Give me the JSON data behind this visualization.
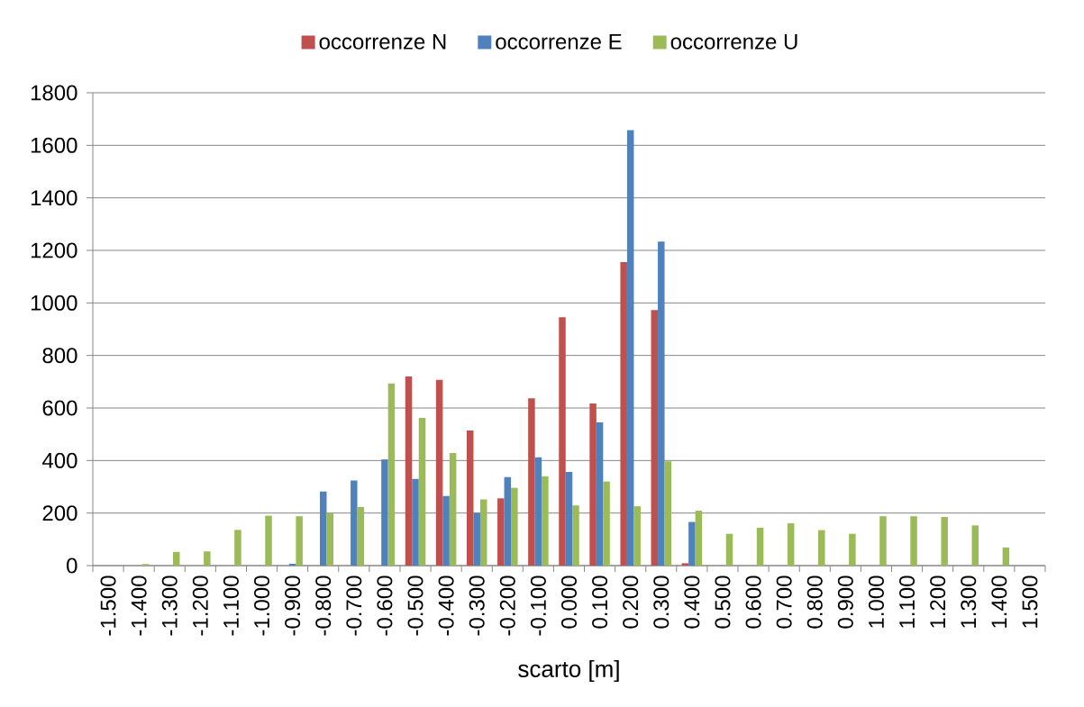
{
  "chart_data": {
    "type": "bar",
    "xlabel": "scarto [m]",
    "categories": [
      "-1.500",
      "-1.400",
      "-1.300",
      "-1.200",
      "-1.100",
      "-1.000",
      "-0.900",
      "-0.800",
      "-0.700",
      "-0.600",
      "-0.500",
      "-0.400",
      "-0.300",
      "-0.200",
      "-0.100",
      "0.000",
      "0.100",
      "0.200",
      "0.300",
      "0.400",
      "0.500",
      "0.600",
      "0.700",
      "0.800",
      "0.900",
      "1.000",
      "1.100",
      "1.200",
      "1.300",
      "1.400",
      "1.500"
    ],
    "series": [
      {
        "name": "occorrenze N",
        "color": "#c0504d",
        "values": [
          null,
          null,
          null,
          null,
          null,
          null,
          null,
          null,
          null,
          null,
          720,
          707,
          514,
          256,
          637,
          945,
          617,
          1155,
          973,
          9,
          null,
          null,
          null,
          null,
          null,
          null,
          null,
          null,
          null,
          null,
          null
        ]
      },
      {
        "name": "occorrenze E",
        "color": "#4f81bd",
        "values": [
          null,
          null,
          null,
          null,
          null,
          null,
          7,
          282,
          324,
          404,
          330,
          265,
          201,
          337,
          412,
          357,
          545,
          1658,
          1233,
          166,
          null,
          null,
          null,
          null,
          null,
          null,
          null,
          null,
          null,
          null,
          null
        ]
      },
      {
        "name": "occorrenze U",
        "color": "#9bbb59",
        "values": [
          null,
          6,
          52,
          54,
          136,
          190,
          188,
          201,
          223,
          693,
          562,
          429,
          252,
          296,
          340,
          229,
          320,
          226,
          397,
          209,
          121,
          144,
          161,
          135,
          121,
          188,
          188,
          185,
          153,
          69,
          null
        ]
      }
    ],
    "ylim": [
      0,
      1800
    ],
    "yticks": [
      0,
      200,
      400,
      600,
      800,
      1000,
      1200,
      1400,
      1600,
      1800
    ],
    "grid": "y",
    "legend": "top"
  }
}
